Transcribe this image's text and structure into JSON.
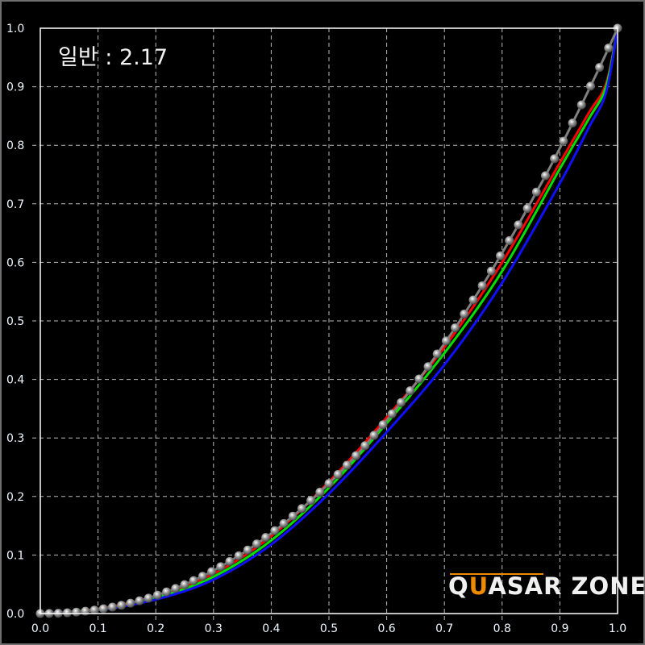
{
  "chart_data": {
    "type": "line",
    "title": "일반 : 2.17",
    "xlim": [
      0,
      1
    ],
    "ylim": [
      0,
      1
    ],
    "xticks": [
      "0.0",
      "0.1",
      "0.2",
      "0.3",
      "0.4",
      "0.5",
      "0.6",
      "0.7",
      "0.8",
      "0.9",
      "1.0"
    ],
    "yticks": [
      "0.0",
      "0.1",
      "0.2",
      "0.3",
      "0.4",
      "0.5",
      "0.6",
      "0.7",
      "0.8",
      "0.9",
      "1.0"
    ],
    "grid": true,
    "watermark": {
      "text_a": "Q",
      "text_b": "U",
      "text_c": "ASAR ZONE",
      "accent": "#f08a00"
    },
    "series": [
      {
        "color": "#808080",
        "markers": true,
        "y": [
          0,
          0.0001,
          0.0005,
          0.0013,
          0.0024,
          0.004,
          0.0059,
          0.0082,
          0.011,
          0.0142,
          0.0178,
          0.0219,
          0.0264,
          0.0315,
          0.037,
          0.0429,
          0.0494,
          0.0563,
          0.0637,
          0.0716,
          0.0801,
          0.0891,
          0.0986,
          0.1085,
          0.119,
          0.13,
          0.1416,
          0.1537,
          0.1663,
          0.1794,
          0.1932,
          0.2074,
          0.2222,
          0.2376,
          0.2534,
          0.2698,
          0.2869,
          0.3045,
          0.3227,
          0.3413,
          0.3606,
          0.3806,
          0.4009,
          0.4219,
          0.4435,
          0.4658,
          0.4882,
          0.5117,
          0.5358,
          0.56,
          0.585,
          0.611,
          0.637,
          0.664,
          0.692,
          0.72,
          0.748,
          0.777,
          0.807,
          0.838,
          0.869,
          0.901,
          0.933,
          0.966,
          1.0
        ]
      },
      {
        "color": "#ff0000",
        "x": [
          0,
          0.1,
          0.2,
          0.3,
          0.4,
          0.5,
          0.6,
          0.7,
          0.8,
          0.9,
          0.95,
          0.98,
          1.0
        ],
        "y": [
          0,
          0.008,
          0.03,
          0.068,
          0.132,
          0.225,
          0.335,
          0.455,
          0.6,
          0.77,
          0.855,
          0.905,
          1.0
        ]
      },
      {
        "color": "#00e000",
        "x": [
          0,
          0.1,
          0.2,
          0.3,
          0.4,
          0.5,
          0.6,
          0.7,
          0.8,
          0.9,
          0.95,
          0.98,
          1.0
        ],
        "y": [
          0,
          0.007,
          0.027,
          0.063,
          0.125,
          0.215,
          0.325,
          0.445,
          0.585,
          0.76,
          0.845,
          0.9,
          1.0
        ]
      },
      {
        "color": "#1010ff",
        "x": [
          0,
          0.1,
          0.2,
          0.3,
          0.4,
          0.5,
          0.6,
          0.7,
          0.8,
          0.9,
          0.95,
          0.98,
          1.0
        ],
        "y": [
          0,
          0.006,
          0.024,
          0.058,
          0.118,
          0.205,
          0.31,
          0.425,
          0.565,
          0.735,
          0.83,
          0.89,
          1.0
        ]
      }
    ]
  }
}
